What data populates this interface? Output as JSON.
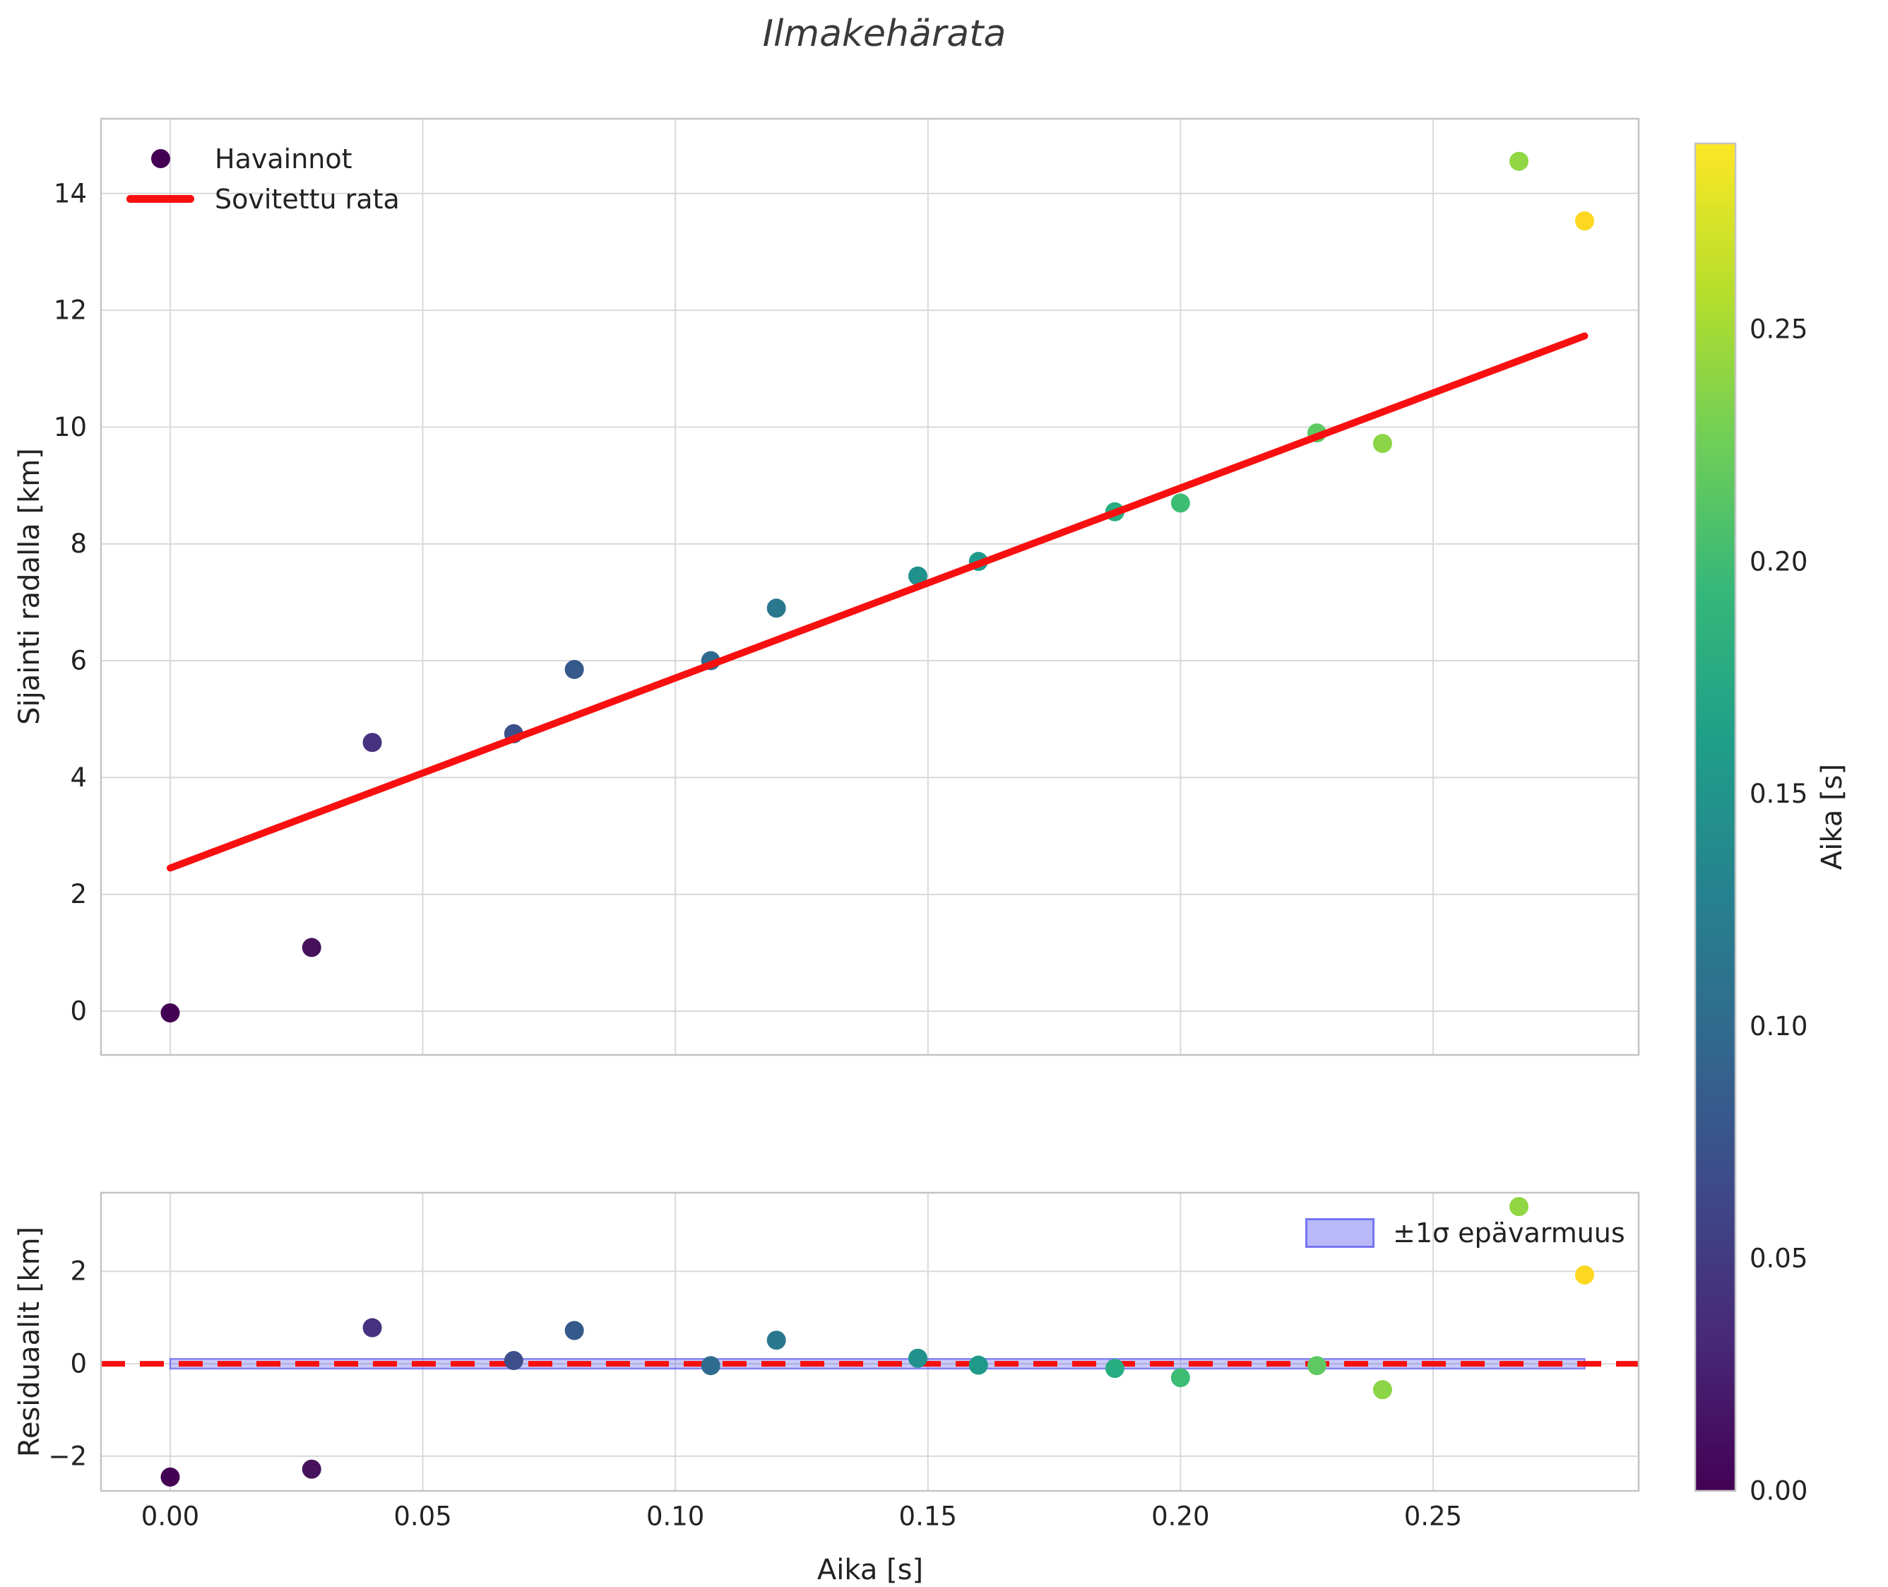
{
  "title": "Ilmakehärata",
  "colors": {
    "text": "#222222",
    "grid": "#d9d9d9",
    "spine": "#c4c4c4",
    "fit_line": "#f80f0f",
    "band_fill": "#5050f0",
    "band_edge": "#5050f0"
  },
  "chart_data": [
    {
      "id": "trajectory",
      "type": "scatter",
      "title": "Ilmakehärata",
      "xlabel": "",
      "ylabel": "Sijainti radalla [km]",
      "xlim": [
        -0.0137,
        0.2907
      ],
      "ylim": [
        -0.75,
        15.28
      ],
      "xticks": [
        0.0,
        0.05,
        0.1,
        0.15,
        0.2,
        0.25
      ],
      "yticks": [
        0,
        2,
        4,
        6,
        8,
        10,
        12,
        14
      ],
      "grid": true,
      "legend_position": "upper left",
      "series": [
        {
          "name": "Havainnot",
          "type": "scatter",
          "x": [
            0.0,
            0.028,
            0.04,
            0.068,
            0.08,
            0.107,
            0.12,
            0.148,
            0.16,
            0.187,
            0.2,
            0.227,
            0.24,
            0.267,
            0.28
          ],
          "y": [
            -0.03,
            1.09,
            4.6,
            4.75,
            5.85,
            6.0,
            6.9,
            7.45,
            7.7,
            8.55,
            8.7,
            9.9,
            9.72,
            14.55,
            13.53
          ],
          "colors": [
            "#440154",
            "#46125c",
            "#46327e",
            "#3c4f8a",
            "#36598c",
            "#2f6b8e",
            "#2a788e",
            "#21918c",
            "#1f9a8a",
            "#27ad81",
            "#3dbc74",
            "#5ec962",
            "#8bd546",
            "#90d743",
            "#fcd920"
          ]
        },
        {
          "name": "Sovitettu rata",
          "type": "line",
          "x": [
            0.0,
            0.28
          ],
          "y": [
            2.45,
            11.56
          ],
          "color": "#f80f0f"
        }
      ]
    },
    {
      "id": "residuals",
      "type": "scatter",
      "xlabel": "Aika [s]",
      "ylabel": "Residuaalit [km]",
      "xlim": [
        -0.0137,
        0.2907
      ],
      "ylim": [
        -2.75,
        3.7
      ],
      "xticks": [
        0.0,
        0.05,
        0.1,
        0.15,
        0.2,
        0.25
      ],
      "yticks": [
        -2,
        0,
        2
      ],
      "grid": true,
      "zero_line": {
        "y": 0,
        "color": "#f80f0f",
        "style": "dashed"
      },
      "band": {
        "label": "±1σ epävarmuus",
        "x_start": 0.0,
        "x_end": 0.28,
        "center": 0.0,
        "half_width": 0.105,
        "fill": "#5050f0",
        "fill_opacity": 0.3,
        "edge": "#5050f0",
        "edge_opacity": 0.65
      },
      "series": [
        {
          "name": "Residuaalit",
          "type": "scatter",
          "x": [
            0.0,
            0.028,
            0.04,
            0.068,
            0.08,
            0.107,
            0.12,
            0.148,
            0.16,
            0.187,
            0.2,
            0.227,
            0.24,
            0.267,
            0.28
          ],
          "y": [
            -2.45,
            -2.28,
            0.78,
            0.07,
            0.72,
            -0.04,
            0.51,
            0.12,
            -0.03,
            -0.1,
            -0.3,
            -0.04,
            -0.56,
            3.4,
            1.92
          ],
          "colors": [
            "#440154",
            "#46125c",
            "#46327e",
            "#3c4f8a",
            "#36598c",
            "#2f6b8e",
            "#2a788e",
            "#21918c",
            "#1f9a8a",
            "#27ad81",
            "#3dbc74",
            "#5ec962",
            "#8bd546",
            "#90d743",
            "#fcd920"
          ]
        }
      ]
    }
  ],
  "colorbar": {
    "label": "Aika [s]",
    "vmin": 0.0,
    "vmax": 0.29,
    "ticks": [
      0.0,
      0.05,
      0.1,
      0.15,
      0.2,
      0.25
    ],
    "colormap": "viridis",
    "stops": [
      "#440154",
      "#482878",
      "#3e4989",
      "#31688e",
      "#26828e",
      "#1f9e89",
      "#35b779",
      "#6ece58",
      "#b5de2b",
      "#fde725"
    ]
  }
}
